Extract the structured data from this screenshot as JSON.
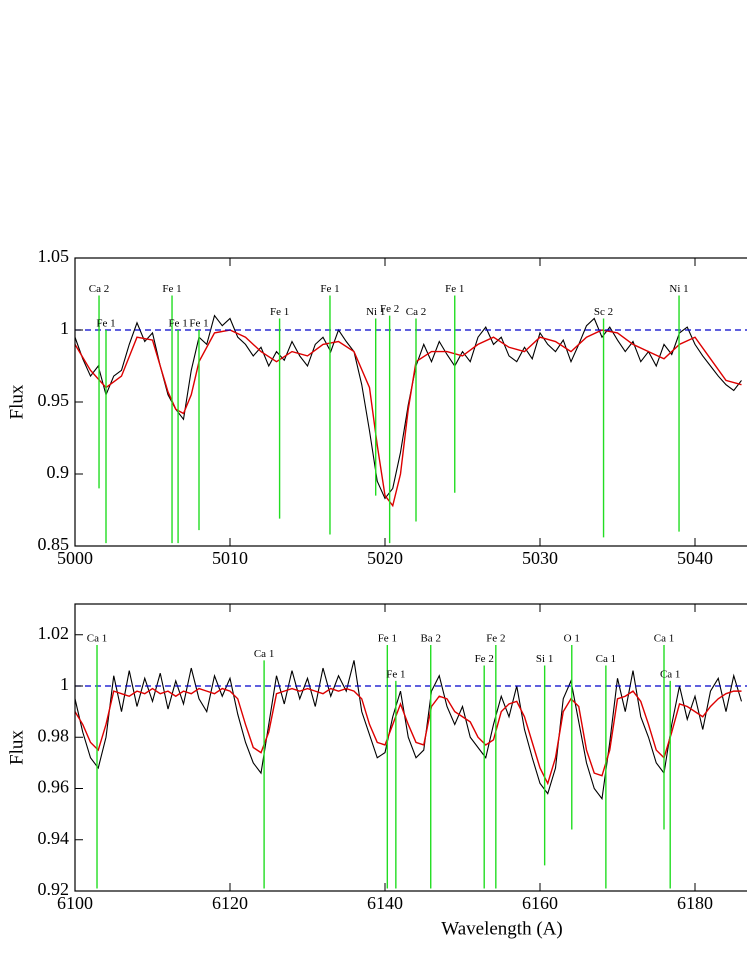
{
  "chart_data": [
    {
      "type": "line",
      "ylabel": "Flux",
      "xlim": [
        5000,
        5045
      ],
      "ylim": [
        0.85,
        1.05
      ],
      "xticks": [
        5000,
        5010,
        5020,
        5030,
        5040
      ],
      "yticks": [
        0.85,
        0.9,
        0.95,
        1,
        1.05
      ],
      "reference_line": {
        "value": 1,
        "color": "#0000cc"
      },
      "series": [
        {
          "color": "#000000",
          "x": [
            5000,
            5000.5,
            5001,
            5001.5,
            5002,
            5002.5,
            5003,
            5003.5,
            5004,
            5004.5,
            5005,
            5005.5,
            5006,
            5006.5,
            5007,
            5007.5,
            5008,
            5008.5,
            5009,
            5009.5,
            5010,
            5010.5,
            5011,
            5011.5,
            5012,
            5012.5,
            5013,
            5013.5,
            5014,
            5014.5,
            5015,
            5015.5,
            5016,
            5016.5,
            5017,
            5017.5,
            5018,
            5018.5,
            5019,
            5019.5,
            5020,
            5020.5,
            5021,
            5021.5,
            5022,
            5022.5,
            5023,
            5023.5,
            5024,
            5024.5,
            5025,
            5025.5,
            5026,
            5026.5,
            5027,
            5027.5,
            5028,
            5028.5,
            5029,
            5029.5,
            5030,
            5030.5,
            5031,
            5031.5,
            5032,
            5032.5,
            5033,
            5033.5,
            5034,
            5034.5,
            5035,
            5035.5,
            5036,
            5036.5,
            5037,
            5037.5,
            5038,
            5038.5,
            5039,
            5039.5,
            5040,
            5040.5,
            5041,
            5041.5,
            5042,
            5042.5,
            5043
          ],
          "values": [
            0.995,
            0.98,
            0.968,
            0.975,
            0.955,
            0.968,
            0.972,
            0.99,
            1.005,
            0.992,
            0.998,
            0.975,
            0.955,
            0.945,
            0.938,
            0.972,
            0.995,
            0.99,
            1.01,
            1.003,
            1.008,
            0.995,
            0.99,
            0.982,
            0.988,
            0.975,
            0.985,
            0.979,
            0.992,
            0.982,
            0.975,
            0.99,
            0.995,
            0.985,
            1.0,
            0.992,
            0.985,
            0.962,
            0.93,
            0.895,
            0.883,
            0.89,
            0.915,
            0.948,
            0.975,
            0.99,
            0.978,
            0.992,
            0.983,
            0.975,
            0.985,
            0.978,
            0.995,
            1.002,
            0.99,
            0.995,
            0.982,
            0.978,
            0.988,
            0.98,
            0.998,
            0.99,
            0.985,
            0.993,
            0.978,
            0.99,
            1.003,
            1.008,
            0.995,
            1.002,
            0.993,
            0.985,
            0.992,
            0.978,
            0.985,
            0.975,
            0.99,
            0.983,
            0.998,
            1.002,
            0.99,
            0.982,
            0.975,
            0.968,
            0.962,
            0.958,
            0.965
          ]
        },
        {
          "color": "#dd0000",
          "x": [
            5000,
            5001,
            5002,
            5003,
            5004,
            5005,
            5006,
            5006.5,
            5007,
            5007.5,
            5008,
            5009,
            5010,
            5011,
            5012,
            5013,
            5014,
            5015,
            5016,
            5017,
            5018,
            5019,
            5019.5,
            5020,
            5020.5,
            5021,
            5021.5,
            5022,
            5023,
            5024,
            5025,
            5026,
            5027,
            5028,
            5029,
            5030,
            5031,
            5032,
            5033,
            5034,
            5035,
            5036,
            5037,
            5038,
            5039,
            5040,
            5041,
            5042,
            5043
          ],
          "values": [
            0.99,
            0.972,
            0.96,
            0.968,
            0.995,
            0.993,
            0.957,
            0.945,
            0.942,
            0.955,
            0.978,
            0.998,
            1.0,
            0.995,
            0.985,
            0.978,
            0.985,
            0.982,
            0.99,
            0.992,
            0.985,
            0.96,
            0.92,
            0.885,
            0.878,
            0.9,
            0.945,
            0.978,
            0.985,
            0.985,
            0.982,
            0.99,
            0.995,
            0.988,
            0.985,
            0.995,
            0.992,
            0.985,
            0.995,
            1.0,
            0.998,
            0.99,
            0.985,
            0.98,
            0.99,
            0.995,
            0.98,
            0.965,
            0.962
          ]
        }
      ],
      "line_color": "#22dd22",
      "spectral_lines": [
        {
          "label": "Ca 2",
          "x": 5001.55,
          "ymax": 1.024,
          "ymin": 0.89
        },
        {
          "label": "Fe 1",
          "x": 5002.0,
          "ymax": 1.0,
          "ymin": 0.852
        },
        {
          "label": "Fe 1",
          "x": 5006.26,
          "ymax": 1.024,
          "ymin": 0.852
        },
        {
          "label": "Fe 1",
          "x": 5006.65,
          "ymax": 1.0,
          "ymin": 0.852
        },
        {
          "label": "Fe 1",
          "x": 5008.0,
          "ymax": 1.0,
          "ymin": 0.861
        },
        {
          "label": "Fe 1",
          "x": 5013.2,
          "ymax": 1.008,
          "ymin": 0.869
        },
        {
          "label": "Fe 1",
          "x": 5016.45,
          "ymax": 1.024,
          "ymin": 0.858
        },
        {
          "label": "Ni 1",
          "x": 5019.4,
          "ymax": 1.008,
          "ymin": 0.885
        },
        {
          "label": "Fe 2",
          "x": 5020.3,
          "ymax": 1.01,
          "ymin": 0.852
        },
        {
          "label": "Ca 2",
          "x": 5022.0,
          "ymax": 1.008,
          "ymin": 0.867
        },
        {
          "label": "Fe 1",
          "x": 5024.5,
          "ymax": 1.024,
          "ymin": 0.887
        },
        {
          "label": "Sc 2",
          "x": 5034.1,
          "ymax": 1.008,
          "ymin": 0.856
        },
        {
          "label": "Ni 1",
          "x": 5038.97,
          "ymax": 1.024,
          "ymin": 0.86
        }
      ]
    },
    {
      "type": "line",
      "ylabel": "Flux",
      "xlabel": "Wavelength (A)",
      "xlim": [
        6100,
        6190
      ],
      "ylim": [
        0.92,
        1.032
      ],
      "xticks": [
        6100,
        6120,
        6140,
        6160,
        6180
      ],
      "yticks": [
        0.92,
        0.94,
        0.96,
        0.98,
        1,
        1.02
      ],
      "reference_line": {
        "value": 1,
        "color": "#0000cc"
      },
      "series": [
        {
          "color": "#000000",
          "x": [
            6100,
            6101,
            6102,
            6103,
            6104,
            6105,
            6106,
            6107,
            6108,
            6109,
            6110,
            6111,
            6112,
            6113,
            6114,
            6115,
            6116,
            6117,
            6118,
            6119,
            6120,
            6121,
            6122,
            6123,
            6124,
            6125,
            6126,
            6127,
            6128,
            6129,
            6130,
            6131,
            6132,
            6133,
            6134,
            6135,
            6136,
            6137,
            6138,
            6139,
            6140,
            6141,
            6142,
            6143,
            6144,
            6145,
            6146,
            6147,
            6148,
            6149,
            6150,
            6151,
            6152,
            6153,
            6154,
            6155,
            6156,
            6157,
            6158,
            6159,
            6160,
            6161,
            6162,
            6163,
            6164,
            6165,
            6166,
            6167,
            6168,
            6169,
            6170,
            6171,
            6172,
            6173,
            6174,
            6175,
            6176,
            6177,
            6178,
            6179,
            6180,
            6181,
            6182,
            6183,
            6184,
            6185,
            6186
          ],
          "values": [
            0.995,
            0.982,
            0.972,
            0.968,
            0.98,
            1.004,
            0.99,
            1.006,
            0.992,
            1.003,
            0.994,
            1.005,
            0.991,
            1.002,
            0.993,
            1.007,
            0.995,
            0.99,
            1.004,
            0.996,
            1.003,
            0.989,
            0.978,
            0.97,
            0.966,
            0.985,
            1.004,
            0.993,
            1.006,
            0.995,
            1.003,
            0.992,
            1.007,
            0.996,
            1.004,
            0.998,
            1.01,
            0.99,
            0.981,
            0.972,
            0.974,
            0.988,
            0.998,
            0.98,
            0.972,
            0.975,
            0.998,
            1.004,
            0.992,
            0.985,
            0.992,
            0.98,
            0.976,
            0.972,
            0.985,
            0.996,
            0.988,
            1.0,
            0.983,
            0.972,
            0.962,
            0.958,
            0.968,
            0.995,
            1.002,
            0.986,
            0.97,
            0.96,
            0.956,
            0.978,
            1.003,
            0.99,
            1.006,
            0.988,
            0.98,
            0.97,
            0.966,
            0.985,
            1.0,
            0.987,
            0.996,
            0.983,
            0.998,
            1.003,
            0.99,
            1.004,
            0.994
          ]
        },
        {
          "color": "#dd0000",
          "x": [
            6100,
            6101,
            6102,
            6103,
            6104,
            6105,
            6106,
            6107,
            6108,
            6109,
            6110,
            6111,
            6112,
            6113,
            6114,
            6115,
            6116,
            6117,
            6118,
            6119,
            6120,
            6121,
            6122,
            6123,
            6124,
            6125,
            6126,
            6127,
            6128,
            6129,
            6130,
            6131,
            6132,
            6133,
            6134,
            6135,
            6136,
            6137,
            6138,
            6139,
            6140,
            6141,
            6142,
            6143,
            6144,
            6145,
            6146,
            6147,
            6148,
            6149,
            6150,
            6151,
            6152,
            6153,
            6154,
            6155,
            6156,
            6157,
            6158,
            6159,
            6160,
            6161,
            6162,
            6163,
            6164,
            6165,
            6166,
            6167,
            6168,
            6169,
            6170,
            6171,
            6172,
            6173,
            6174,
            6175,
            6176,
            6177,
            6178,
            6179,
            6180,
            6181,
            6182,
            6183,
            6184,
            6185,
            6186
          ],
          "values": [
            0.99,
            0.985,
            0.978,
            0.975,
            0.985,
            0.998,
            0.997,
            0.996,
            0.998,
            0.997,
            0.999,
            0.997,
            0.998,
            0.996,
            0.998,
            0.997,
            0.999,
            0.998,
            0.997,
            0.999,
            0.998,
            0.995,
            0.985,
            0.976,
            0.974,
            0.982,
            0.997,
            0.998,
            0.999,
            0.998,
            0.999,
            0.998,
            0.997,
            0.999,
            0.998,
            0.999,
            0.998,
            0.995,
            0.985,
            0.978,
            0.977,
            0.985,
            0.993,
            0.985,
            0.978,
            0.977,
            0.992,
            0.996,
            0.995,
            0.99,
            0.988,
            0.986,
            0.98,
            0.977,
            0.979,
            0.99,
            0.993,
            0.994,
            0.988,
            0.978,
            0.968,
            0.962,
            0.972,
            0.99,
            0.995,
            0.992,
            0.975,
            0.966,
            0.965,
            0.975,
            0.995,
            0.996,
            0.998,
            0.994,
            0.985,
            0.975,
            0.972,
            0.982,
            0.993,
            0.992,
            0.99,
            0.988,
            0.992,
            0.995,
            0.997,
            0.998,
            0.998
          ]
        }
      ],
      "line_color": "#22dd22",
      "spectral_lines": [
        {
          "label": "Ca 1",
          "x": 6102.84,
          "ymax": 1.016,
          "ymin": 0.921
        },
        {
          "label": "Ca 1",
          "x": 6124.4,
          "ymax": 1.01,
          "ymin": 0.921
        },
        {
          "label": "Fe 1",
          "x": 6140.3,
          "ymax": 1.016,
          "ymin": 0.921
        },
        {
          "label": "Fe 1",
          "x": 6141.4,
          "ymax": 1.002,
          "ymin": 0.921
        },
        {
          "label": "Ba 2",
          "x": 6145.9,
          "ymax": 1.016,
          "ymin": 0.921
        },
        {
          "label": "Fe 2",
          "x": 6152.8,
          "ymax": 1.008,
          "ymin": 0.921
        },
        {
          "label": "Fe 2",
          "x": 6154.3,
          "ymax": 1.016,
          "ymin": 0.921
        },
        {
          "label": "Si 1",
          "x": 6160.6,
          "ymax": 1.008,
          "ymin": 0.93
        },
        {
          "label": "O 1",
          "x": 6164.1,
          "ymax": 1.016,
          "ymin": 0.944
        },
        {
          "label": "Ca 1",
          "x": 6168.5,
          "ymax": 1.008,
          "ymin": 0.921
        },
        {
          "label": "Ca 1",
          "x": 6176.0,
          "ymax": 1.016,
          "ymin": 0.944
        },
        {
          "label": "Ca 1",
          "x": 6176.8,
          "ymax": 1.002,
          "ymin": 0.921
        }
      ]
    }
  ]
}
